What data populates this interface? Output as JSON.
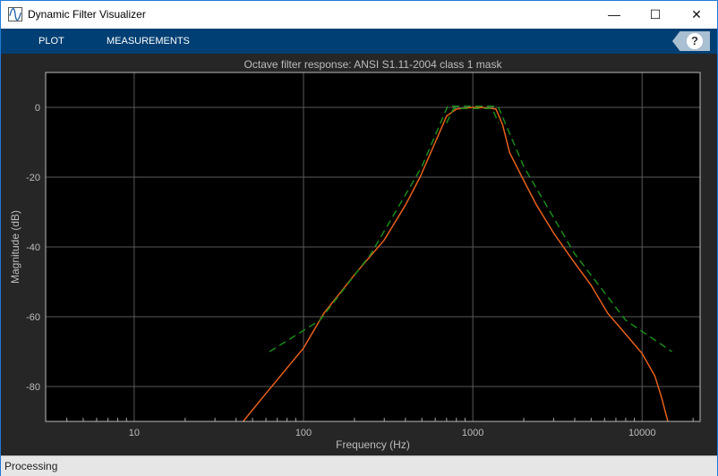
{
  "window": {
    "title": "Dynamic Filter Visualizer",
    "icon": "waveform-icon"
  },
  "toolstrip": {
    "tabs": [
      {
        "label": "PLOT"
      },
      {
        "label": "MEASUREMENTS"
      }
    ],
    "help_label": "?"
  },
  "status": {
    "text": "Processing"
  },
  "chart_data": {
    "type": "line",
    "title": "Octave filter response: ANSI S1.11-2004 class 1 mask",
    "xlabel": "Frequency (Hz)",
    "ylabel": "Magnitude (dB)",
    "xscale": "log",
    "xlim": [
      3,
      22000
    ],
    "ylim": [
      -90,
      10
    ],
    "xticks": [
      10,
      100,
      1000,
      10000
    ],
    "xtick_labels": [
      "10",
      "100",
      "1000",
      "10000"
    ],
    "yticks": [
      0,
      -20,
      -40,
      -60,
      -80
    ],
    "ytick_labels": [
      "0",
      "-20",
      "-40",
      "-60",
      "-80"
    ],
    "grid": true,
    "series": [
      {
        "color": "#e8601c",
        "style": "solid",
        "x": [
          44,
          60,
          100,
          132,
          200,
          300,
          400,
          488,
          600,
          700,
          800,
          1000,
          1200,
          1370,
          1500,
          1650,
          2000,
          2380,
          3000,
          3860,
          5000,
          6260,
          8000,
          10000,
          11900,
          13000,
          14200
        ],
        "y": [
          -90,
          -82,
          -69,
          -59,
          -48,
          -38,
          -28,
          -20,
          -10,
          -2.5,
          -0.5,
          0,
          -0.1,
          -0.5,
          -5,
          -13,
          -21,
          -28,
          -36,
          -43.6,
          -51,
          -59,
          -65,
          -70.5,
          -77,
          -83,
          -90
        ]
      },
      {
        "color": "#1a8a1a",
        "style": "dashed",
        "x": [
          63,
          125,
          250,
          500,
          710,
          1410,
          2000,
          4000,
          8000,
          15000
        ],
        "y": [
          -70,
          -61,
          -42,
          -17,
          0.3,
          0.3,
          -17,
          -42,
          -61,
          -70
        ]
      },
      {
        "color": "#1a8a1a",
        "style": "dashed",
        "x": [
          700,
          770,
          1300,
          1420
        ],
        "y": [
          -4.5,
          -0.3,
          -0.3,
          -4.5
        ]
      }
    ]
  }
}
